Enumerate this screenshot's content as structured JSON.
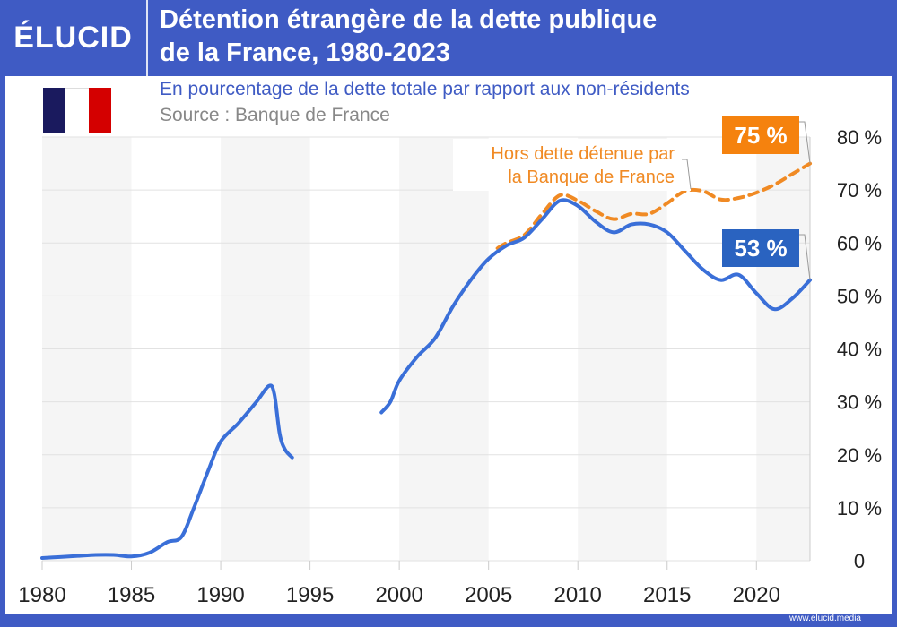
{
  "brand": {
    "logo": "ÉLUCID",
    "website": "www.elucid.media"
  },
  "header": {
    "title_line1": "Détention étrangère de la dette publique",
    "title_line2": "de la France, 1980-2023"
  },
  "subtitle": "En pourcentage de la dette totale par rapport aux non-résidents",
  "source": "Source : Banque de France",
  "flag": {
    "colors": [
      "#1a1a5e",
      "#ffffff",
      "#d40000"
    ]
  },
  "chart_data": {
    "type": "line",
    "title": "Détention étrangère de la dette publique de la France, 1980-2023",
    "xlim": [
      1980,
      2023
    ],
    "ylim": [
      0,
      80
    ],
    "x_ticks": [
      1980,
      1985,
      1990,
      1995,
      2000,
      2005,
      2010,
      2015,
      2020
    ],
    "x_tick_labels": [
      "1980",
      "1985",
      "1990",
      "1995",
      "2000",
      "2005",
      "2010",
      "2015",
      "2020"
    ],
    "y_ticks": [
      0,
      10,
      20,
      30,
      40,
      50,
      60,
      70,
      80
    ],
    "y_tick_labels": [
      "0",
      "10 %",
      "20 %",
      "30 %",
      "40 %",
      "50 %",
      "60 %",
      "70 %",
      "80 %"
    ],
    "grid": "horizontal",
    "shaded_bands": [
      [
        1980,
        1985
      ],
      [
        1990,
        1995
      ],
      [
        2000,
        2005
      ],
      [
        2010,
        2015
      ],
      [
        2020,
        2023
      ]
    ],
    "series": [
      {
        "color": "#3a6fd8",
        "style": "solid",
        "end_label": "53 %",
        "segments": [
          [
            [
              1980,
              0.5
            ],
            [
              1981,
              0.7
            ],
            [
              1982,
              0.9
            ],
            [
              1983,
              1.1
            ],
            [
              1984,
              1.1
            ],
            [
              1985,
              0.8
            ],
            [
              1986,
              1.5
            ],
            [
              1987,
              3.5
            ],
            [
              1987.8,
              4.5
            ],
            [
              1988.5,
              10
            ],
            [
              1989.3,
              17
            ],
            [
              1990,
              22.5
            ],
            [
              1991,
              26
            ],
            [
              1992,
              30
            ],
            [
              1992.7,
              33
            ],
            [
              1993,
              31.5
            ],
            [
              1993.3,
              24
            ],
            [
              1993.6,
              21
            ],
            [
              1994,
              19.5
            ]
          ],
          [
            [
              1999,
              28
            ],
            [
              1999.5,
              30
            ],
            [
              2000,
              34
            ],
            [
              2001,
              38.5
            ],
            [
              2002,
              42
            ],
            [
              2003,
              48
            ],
            [
              2004,
              53
            ],
            [
              2005,
              57
            ],
            [
              2006,
              59.5
            ],
            [
              2007,
              61
            ],
            [
              2008,
              64.5
            ],
            [
              2009,
              68
            ],
            [
              2010,
              67
            ],
            [
              2011,
              64
            ],
            [
              2012,
              62
            ],
            [
              2013,
              63.5
            ],
            [
              2014,
              63.5
            ],
            [
              2015,
              62
            ],
            [
              2016,
              58.5
            ],
            [
              2017,
              55
            ],
            [
              2018,
              53
            ],
            [
              2019,
              54
            ],
            [
              2020,
              50.5
            ],
            [
              2021,
              47.5
            ],
            [
              2022,
              49.5
            ],
            [
              2023,
              53
            ]
          ]
        ]
      },
      {
        "name": "Hors dette détenue par la Banque de France",
        "color": "#f08a24",
        "style": "dashed",
        "end_label": "75 %",
        "segments": [
          [
            [
              2005.5,
              59
            ],
            [
              2006,
              60
            ],
            [
              2007,
              61.5
            ],
            [
              2008,
              65.5
            ],
            [
              2009,
              69
            ],
            [
              2010,
              68
            ],
            [
              2011,
              66
            ],
            [
              2012,
              64.5
            ],
            [
              2013,
              65.5
            ],
            [
              2014,
              65.5
            ],
            [
              2015,
              67.5
            ],
            [
              2016,
              69.8
            ],
            [
              2017,
              69.8
            ],
            [
              2018,
              68.2
            ],
            [
              2019,
              68.5
            ],
            [
              2020,
              69.5
            ],
            [
              2021,
              71
            ],
            [
              2022,
              73
            ],
            [
              2023,
              75
            ]
          ]
        ]
      }
    ],
    "annotation": {
      "line1": "Hors dette détenue par",
      "line2": "la Banque de France"
    }
  }
}
